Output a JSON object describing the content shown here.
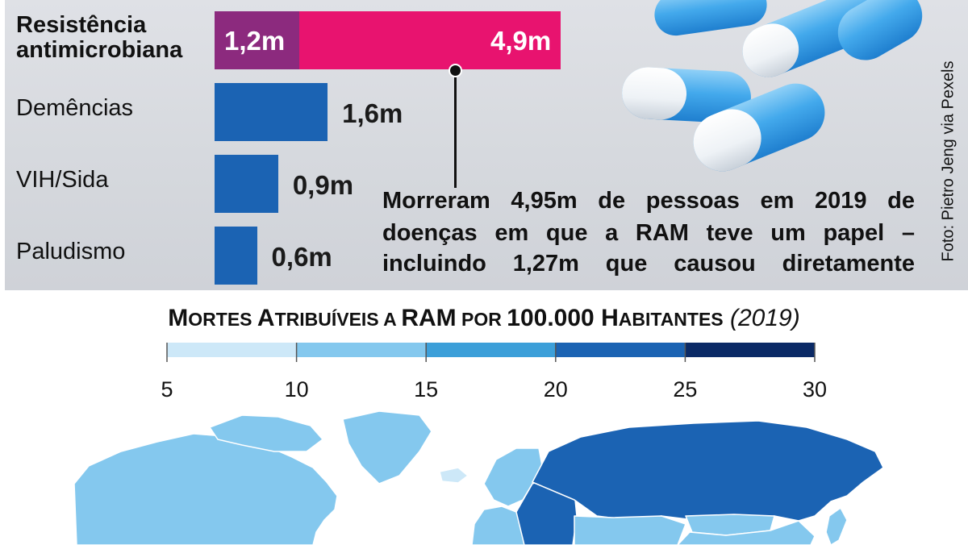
{
  "chart_data": {
    "type": "bar",
    "orientation": "horizontal",
    "unit": "m",
    "categories": [
      {
        "label": "Resistência antimicrobiana",
        "label_lines": [
          "Resistência",
          "antimicrobiana"
        ],
        "bold": true,
        "segments": [
          {
            "value": 1.2,
            "label": "1,2m",
            "color": "#8c2a7e"
          },
          {
            "value": 4.9,
            "label": "4,9m",
            "color": "#e8136f"
          }
        ]
      },
      {
        "label": "Demências",
        "value": 1.6,
        "value_label": "1,6m",
        "color": "#1b63b3"
      },
      {
        "label": "VIH/Sida",
        "value": 0.9,
        "value_label": "0,9m",
        "color": "#1b63b3"
      },
      {
        "label": "Paludismo",
        "value": 0.6,
        "value_label": "0,6m",
        "color": "#1b63b3"
      }
    ],
    "annotation_lines": [
      "Morreram 4,95m de pessoas em 2019 de",
      "doenças em que a RAM teve um papel –",
      "incluindo 1,27m que causou diretamente"
    ]
  },
  "photo_credit": "Foto: Pietro Jeng via Pexels",
  "map_legend": {
    "title_parts": [
      {
        "cap": "M",
        "rest": "ORTES "
      },
      {
        "cap": "A",
        "rest": "TRIBUÍVEIS A "
      },
      {
        "cap": "RAM",
        "rest": " POR "
      },
      {
        "cap": "100.000 H",
        "rest": "ABITANTES"
      }
    ],
    "year": "(2019)",
    "ticks": [
      "5",
      "10",
      "15",
      "20",
      "25",
      "30"
    ],
    "bins": [
      {
        "from": 5,
        "to": 10,
        "color": "#cde8f8"
      },
      {
        "from": 10,
        "to": 15,
        "color": "#84c8ee"
      },
      {
        "from": 15,
        "to": 20,
        "color": "#3c9fd9"
      },
      {
        "from": 20,
        "to": 25,
        "color": "#1b63b3"
      },
      {
        "from": 25,
        "to": 30,
        "color": "#0b2a66"
      }
    ]
  },
  "map_regions": {
    "north-america": "#84c8ee",
    "greenland": "#84c8ee",
    "canadian-islands": "#84c8ee",
    "iceland": "#cde8f8",
    "scandinavia": "#84c8ee",
    "western-europe": "#84c8ee",
    "eastern-europe": "#1b63b3",
    "russia": "#1b63b3",
    "central-asia": "#84c8ee",
    "mongolia": "#84c8ee",
    "china": "#84c8ee",
    "japan": "#84c8ee"
  }
}
